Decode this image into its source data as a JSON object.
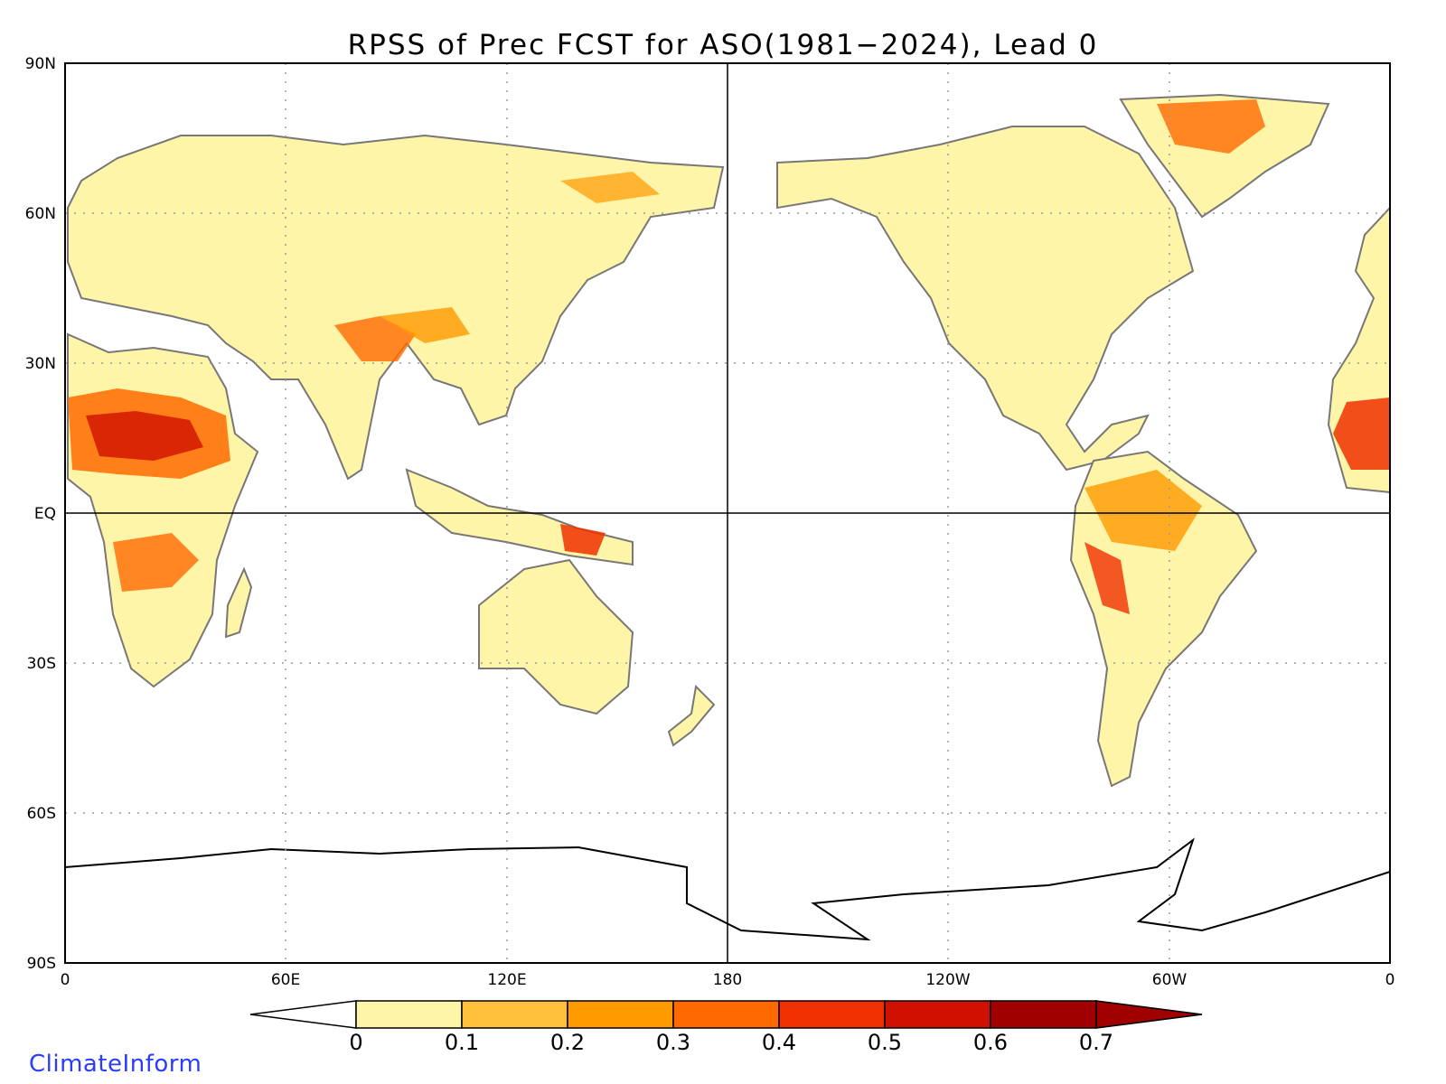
{
  "title": "RPSS of Prec FCST for ASO(1981−2024), Lead 0",
  "credit": "ClimateInform",
  "axes": {
    "lat_labels": [
      "90N",
      "60N",
      "30N",
      "EQ",
      "30S",
      "60S",
      "90S"
    ],
    "lon_labels": [
      "0",
      "60E",
      "120E",
      "180",
      "120W",
      "60W",
      "0"
    ],
    "lat_values": [
      90,
      60,
      30,
      0,
      -30,
      -60,
      -90
    ],
    "lon_values": [
      0,
      60,
      120,
      180,
      240,
      300,
      360
    ]
  },
  "colorbar": {
    "ticks": [
      "0",
      "0.1",
      "0.2",
      "0.3",
      "0.4",
      "0.5",
      "0.6",
      "0.7"
    ],
    "colors": [
      "#ffffff",
      "#fff5a8",
      "#ffc03c",
      "#ff9a00",
      "#ff6a00",
      "#f03000",
      "#d01000",
      "#a00000"
    ]
  },
  "colors": {
    "coast": "#777777",
    "frame": "#000000",
    "grid": "#999999"
  }
}
